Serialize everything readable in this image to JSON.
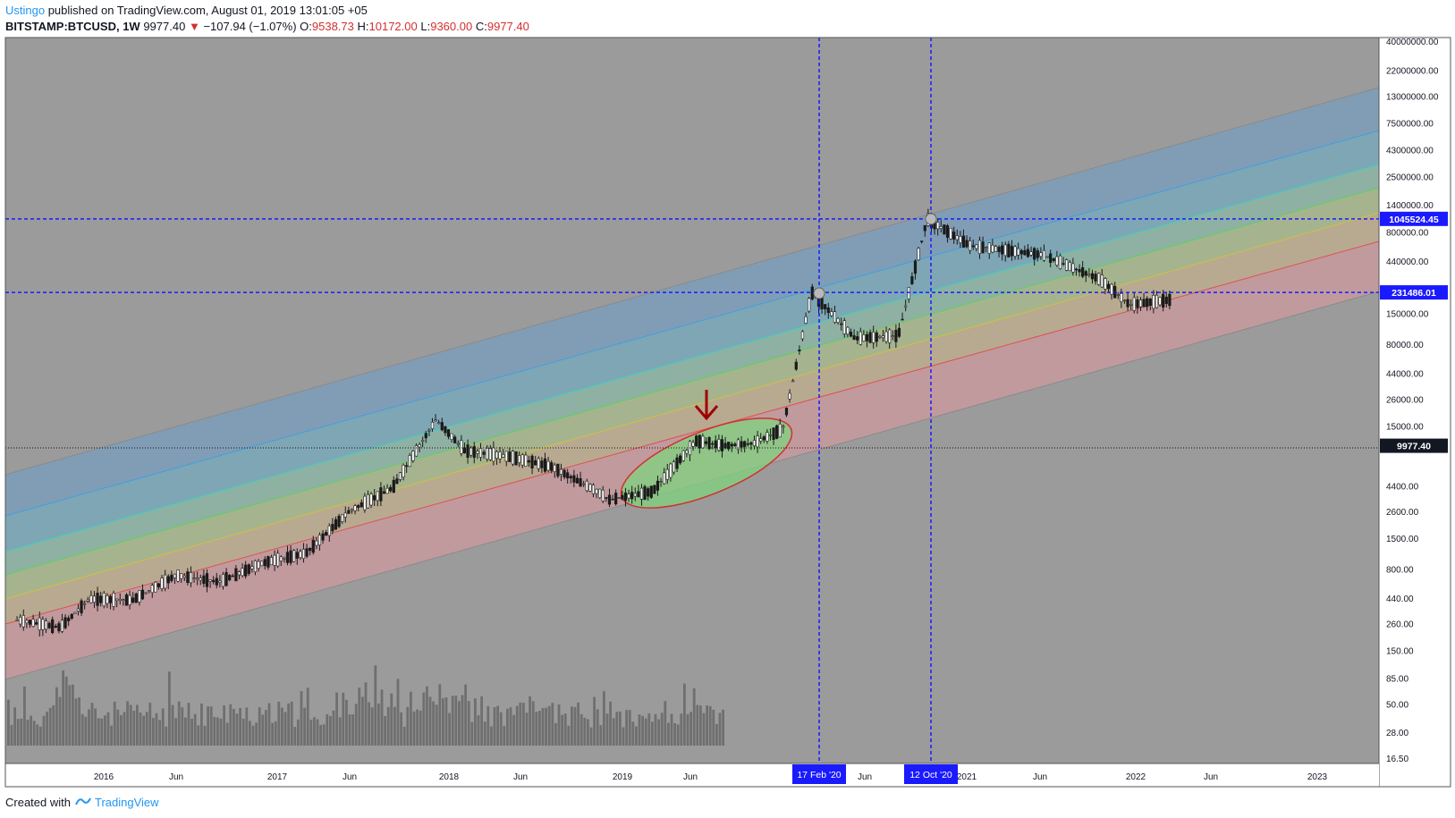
{
  "header": {
    "author": "Ustingo",
    "published_text": "published on TradingView.com, August 01, 2019 13:01:05 +05",
    "symbol": "BITSTAMP:BTCUSD, 1W",
    "last": "9977.40",
    "change_arrow": "▼",
    "change": "−107.94 (−1.07%)",
    "o_label": "O:",
    "o_value": "9538.73",
    "h_label": "H:",
    "h_value": "10172.00",
    "l_label": "L:",
    "l_value": "9360.00",
    "c_label": "C:",
    "c_value": "9977.40"
  },
  "footer": {
    "created_with": "Created with",
    "brand": "TradingView"
  },
  "colors": {
    "background": "#9b9b9b",
    "candle": "#1a1a1a",
    "volume": "#6f6f6f",
    "crosshair": "#1a1aff",
    "annotation_red": "#a00000",
    "ellipse_fill": "#7fd37f",
    "ellipse_stroke": "#d32f2f"
  },
  "chart_data": {
    "type": "candlestick",
    "title": "",
    "xlabel": "",
    "ylabel": "",
    "y_scale": "log",
    "grid": false,
    "x_ticks": [
      "2016",
      "Jun",
      "2017",
      "Jun",
      "2018",
      "Jun",
      "2019",
      "Jun",
      "Jun",
      "2021",
      "Jun",
      "2022",
      "Jun",
      "2023"
    ],
    "y_ticks": [
      "40000000.00",
      "22000000.00",
      "13000000.00",
      "7500000.00",
      "4300000.00",
      "2500000.00",
      "1400000.00",
      "800000.00",
      "440000.00",
      "150000.00",
      "80000.00",
      "44000.00",
      "26000.00",
      "15000.00",
      "4400.00",
      "2600.00",
      "1500.00",
      "800.00",
      "440.00",
      "260.00",
      "150.00",
      "85.00",
      "50.00",
      "28.00",
      "16.50"
    ],
    "price_labels": [
      {
        "value": "1045524.45",
        "style": "blue"
      },
      {
        "value": "231486.01",
        "style": "blue"
      },
      {
        "value": "9977.40",
        "style": "dark"
      }
    ],
    "date_labels": [
      "17 Feb '20",
      "12 Oct '20"
    ],
    "horizontal_lines": [
      1045524.45,
      231486.01
    ],
    "vertical_lines": [
      "17 Feb '20",
      "12 Oct '20"
    ],
    "current_price": 9977.4,
    "channel_bands": [
      {
        "name": "top",
        "color": "#5b8fc2"
      },
      {
        "name": "blue",
        "color": "#5fa0c8"
      },
      {
        "name": "cyan",
        "color": "#6fb7b0"
      },
      {
        "name": "green",
        "color": "#9fc27f"
      },
      {
        "name": "yellow",
        "color": "#c2b57f"
      },
      {
        "name": "red",
        "color": "#c27f86"
      }
    ],
    "price_path": [
      [
        "2015-07",
        280
      ],
      [
        "2015-10",
        240
      ],
      [
        "2015-12",
        430
      ],
      [
        "2016-03",
        420
      ],
      [
        "2016-06",
        700
      ],
      [
        "2016-09",
        610
      ],
      [
        "2016-12",
        900
      ],
      [
        "2017-03",
        1100
      ],
      [
        "2017-06",
        2600
      ],
      [
        "2017-09",
        4200
      ],
      [
        "2017-12",
        17000
      ],
      [
        "2018-02",
        9000
      ],
      [
        "2018-05",
        8000
      ],
      [
        "2018-08",
        6500
      ],
      [
        "2018-11",
        4000
      ],
      [
        "2018-12",
        3300
      ],
      [
        "2019-03",
        3900
      ],
      [
        "2019-06",
        11000
      ],
      [
        "2019-08",
        9977.4
      ],
      [
        "2019-10",
        10500
      ],
      [
        "2019-12",
        14000
      ],
      [
        "2020-02",
        231486.01
      ],
      [
        "2020-05",
        90000
      ],
      [
        "2020-08",
        95000
      ],
      [
        "2020-10",
        1045524.45
      ],
      [
        "2021-01",
        600000
      ],
      [
        "2021-06",
        500000
      ],
      [
        "2021-10",
        300000
      ],
      [
        "2021-12",
        180000
      ],
      [
        "2022-03",
        200000
      ]
    ]
  }
}
